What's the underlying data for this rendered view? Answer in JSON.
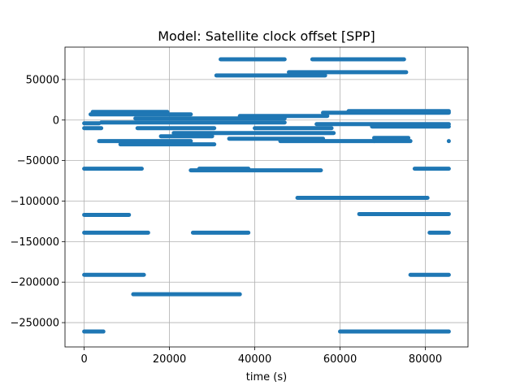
{
  "chart_data": {
    "type": "scatter",
    "title": "Model: Satellite clock offset [SPP]",
    "xlabel": "time (s)",
    "ylabel": "",
    "xlim": [
      -4500,
      90000
    ],
    "ylim": [
      -280000,
      90000
    ],
    "xticks": [
      0,
      20000,
      40000,
      60000,
      80000
    ],
    "xtick_labels": [
      "0",
      "20000",
      "40000",
      "60000",
      "80000"
    ],
    "yticks": [
      -250000,
      -200000,
      -150000,
      -100000,
      -50000,
      0,
      50000
    ],
    "ytick_labels": [
      "−250000",
      "−200000",
      "−150000",
      "−100000",
      "−50000",
      "0",
      "50000"
    ],
    "grid": true,
    "legend": "none",
    "marker_color": "#1f77b4",
    "segments": [
      {
        "x": [
          32000,
          47000
        ],
        "y": 75000
      },
      {
        "x": [
          53500,
          75000
        ],
        "y": 75000
      },
      {
        "x": [
          31000,
          56500
        ],
        "y": 55000
      },
      {
        "x": [
          48000,
          75500
        ],
        "y": 59000
      },
      {
        "x": [
          2000,
          19500
        ],
        "y": 10000
      },
      {
        "x": [
          1500,
          25000
        ],
        "y": 7000
      },
      {
        "x": [
          56000,
          85500
        ],
        "y": 9000
      },
      {
        "x": [
          62000,
          85500
        ],
        "y": 11000
      },
      {
        "x": [
          36500,
          57000
        ],
        "y": 5000
      },
      {
        "x": [
          12000,
          47000
        ],
        "y": 2000
      },
      {
        "x": [
          4000,
          47000
        ],
        "y": -3000
      },
      {
        "x": [
          0,
          3500
        ],
        "y": -4000
      },
      {
        "x": [
          54500,
          85500
        ],
        "y": -5000
      },
      {
        "x": [
          0,
          4000
        ],
        "y": -10000
      },
      {
        "x": [
          12500,
          30500
        ],
        "y": -10000
      },
      {
        "x": [
          40000,
          58000
        ],
        "y": -10000
      },
      {
        "x": [
          67500,
          85500
        ],
        "y": -8000
      },
      {
        "x": [
          21000,
          58500
        ],
        "y": -16000
      },
      {
        "x": [
          18000,
          30000
        ],
        "y": -20000
      },
      {
        "x": [
          34000,
          56000
        ],
        "y": -23000
      },
      {
        "x": [
          68000,
          76000
        ],
        "y": -22000
      },
      {
        "x": [
          3500,
          25000
        ],
        "y": -26000
      },
      {
        "x": [
          46000,
          68000
        ],
        "y": -26000
      },
      {
        "x": [
          68000,
          76500
        ],
        "y": -26000
      },
      {
        "x": [
          8500,
          30500
        ],
        "y": -30000
      },
      {
        "x": [
          0,
          13500
        ],
        "y": -60000
      },
      {
        "x": [
          25000,
          55500
        ],
        "y": -62000
      },
      {
        "x": [
          27000,
          38500
        ],
        "y": -60000
      },
      {
        "x": [
          77500,
          85500
        ],
        "y": -60000
      },
      {
        "x": [
          50000,
          80500
        ],
        "y": -96000
      },
      {
        "x": [
          0,
          10500
        ],
        "y": -117000
      },
      {
        "x": [
          64500,
          85500
        ],
        "y": -116000
      },
      {
        "x": [
          0,
          15000
        ],
        "y": -139000
      },
      {
        "x": [
          25500,
          38500
        ],
        "y": -139000
      },
      {
        "x": [
          81000,
          85500
        ],
        "y": -139000
      },
      {
        "x": [
          0,
          14000
        ],
        "y": -191000
      },
      {
        "x": [
          76500,
          85500
        ],
        "y": -191000
      },
      {
        "x": [
          11500,
          36500
        ],
        "y": -215000
      },
      {
        "x": [
          0,
          4500
        ],
        "y": -261000
      },
      {
        "x": [
          60000,
          85500
        ],
        "y": -261000
      }
    ],
    "points": [
      {
        "x": 85500,
        "y": -26000
      }
    ]
  }
}
